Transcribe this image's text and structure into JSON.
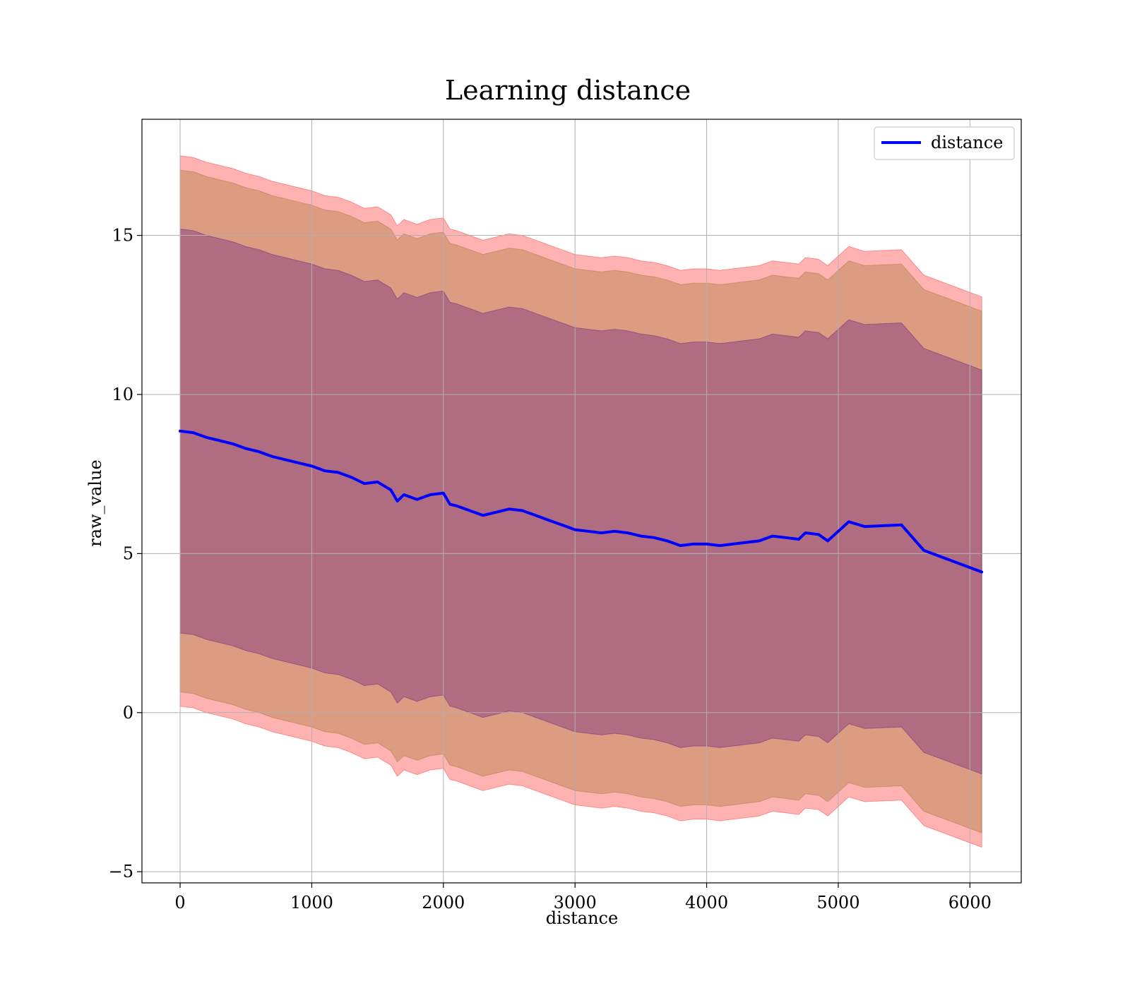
{
  "chart_data": {
    "type": "line",
    "title": "Learning distance",
    "xlabel": "distance",
    "ylabel": "raw_value",
    "xlim": [
      -290,
      6390
    ],
    "ylim": [
      -5.35,
      18.65
    ],
    "xticks": [
      0,
      1000,
      2000,
      3000,
      4000,
      5000,
      6000
    ],
    "yticks": [
      -5,
      0,
      5,
      10,
      15
    ],
    "xtick_labels": [
      "0",
      "1000",
      "2000",
      "3000",
      "4000",
      "5000",
      "6000"
    ],
    "ytick_labels": [
      "−5",
      "0",
      "5",
      "10",
      "15"
    ],
    "grid": true,
    "legend": {
      "placement": "top-right",
      "entries": [
        "distance"
      ]
    },
    "colors": {
      "line": "#0000ff",
      "band_outer": "#ff0000",
      "band_middle": "#8b6914",
      "band_inner": "#4b0082",
      "grid": "#b0b0b0"
    },
    "x": [
      0,
      100,
      200,
      300,
      400,
      500,
      600,
      700,
      800,
      900,
      1000,
      1100,
      1200,
      1300,
      1400,
      1500,
      1600,
      1650,
      1700,
      1800,
      1900,
      2000,
      2050,
      2100,
      2200,
      2300,
      2400,
      2500,
      2600,
      2700,
      2800,
      2900,
      3000,
      3100,
      3200,
      3300,
      3400,
      3500,
      3600,
      3700,
      3800,
      3900,
      4000,
      4100,
      4200,
      4300,
      4400,
      4500,
      4600,
      4700,
      4750,
      4850,
      4920,
      5080,
      5200,
      5480,
      5650,
      6090
    ],
    "series": [
      {
        "name": "distance",
        "values": [
          8.85,
          8.8,
          8.65,
          8.55,
          8.45,
          8.3,
          8.2,
          8.05,
          7.95,
          7.85,
          7.75,
          7.6,
          7.55,
          7.4,
          7.2,
          7.25,
          7.0,
          6.65,
          6.85,
          6.7,
          6.85,
          6.9,
          6.55,
          6.5,
          6.35,
          6.2,
          6.3,
          6.4,
          6.35,
          6.2,
          6.05,
          5.9,
          5.75,
          5.7,
          5.65,
          5.7,
          5.65,
          5.55,
          5.5,
          5.4,
          5.25,
          5.3,
          5.3,
          5.25,
          5.3,
          5.35,
          5.4,
          5.55,
          5.5,
          5.45,
          5.65,
          5.6,
          5.4,
          6.0,
          5.85,
          5.9,
          5.1,
          4.42
        ]
      }
    ],
    "bands": [
      {
        "level": "outer",
        "offset": 8.65
      },
      {
        "level": "middle",
        "offset": 8.2
      },
      {
        "level": "inner",
        "offset": 6.35
      }
    ]
  }
}
